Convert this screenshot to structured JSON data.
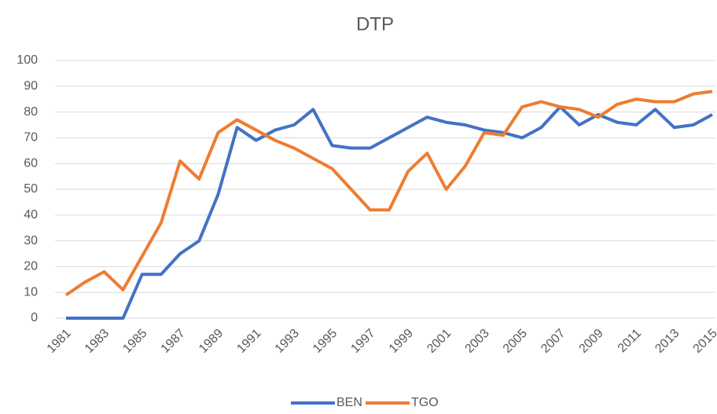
{
  "chart_data": {
    "type": "line",
    "title": "DTP",
    "categories": [
      "1981",
      null,
      "1983",
      null,
      "1985",
      null,
      "1987",
      null,
      "1989",
      null,
      "1991",
      null,
      "1993",
      null,
      "1995",
      null,
      "1997",
      null,
      "1999",
      null,
      "2001",
      null,
      "2003",
      null,
      "2005",
      null,
      "2007",
      null,
      "2009",
      null,
      "2011",
      null,
      "2013",
      null,
      "2015"
    ],
    "series": [
      {
        "name": "BEN",
        "color": "#4472c4",
        "values": [
          0,
          0,
          0,
          0,
          17,
          17,
          25,
          30,
          48,
          74,
          69,
          73,
          75,
          81,
          67,
          66,
          66,
          70,
          74,
          78,
          76,
          75,
          73,
          72,
          70,
          74,
          82,
          75,
          79,
          76,
          75,
          81,
          74,
          75,
          79
        ]
      },
      {
        "name": "TGO",
        "color": "#ed7d31",
        "values": [
          9,
          14,
          18,
          11,
          24,
          37,
          61,
          54,
          72,
          77,
          73,
          69,
          66,
          62,
          58,
          50,
          42,
          42,
          57,
          64,
          50,
          59,
          72,
          71,
          82,
          84,
          82,
          81,
          78,
          83,
          85,
          84,
          84,
          87,
          88
        ]
      }
    ],
    "ylim": [
      0,
      100
    ],
    "yticks": [
      0,
      10,
      20,
      30,
      40,
      50,
      60,
      70,
      80,
      90,
      100
    ],
    "grid": true,
    "legend": "bottom"
  }
}
